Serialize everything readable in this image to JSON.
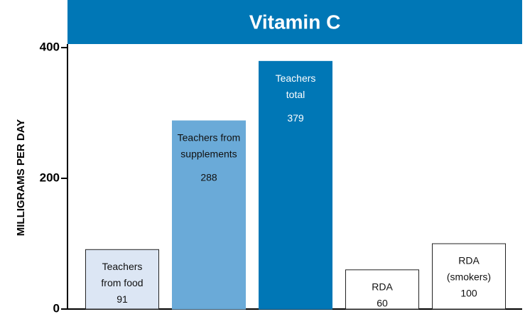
{
  "chart_data": {
    "type": "bar",
    "title": "Vitamin C",
    "y_label": "MILLIGRAMS PER DAY",
    "categories": [
      [
        "Teachers",
        "from food"
      ],
      [
        "Teachers from",
        "supplements"
      ],
      [
        "Teachers",
        "total"
      ],
      [
        "RDA"
      ],
      [
        "RDA",
        "(smokers)"
      ]
    ],
    "values": [
      91,
      288,
      379,
      60,
      100
    ],
    "colors": [
      "#dce6f4",
      "#6aaad8",
      "#0077b6",
      "#ffffff",
      "#ffffff"
    ],
    "title_color": "#0077b6",
    "ylim": [
      0,
      400
    ],
    "yticks": [
      0,
      200,
      400
    ]
  }
}
